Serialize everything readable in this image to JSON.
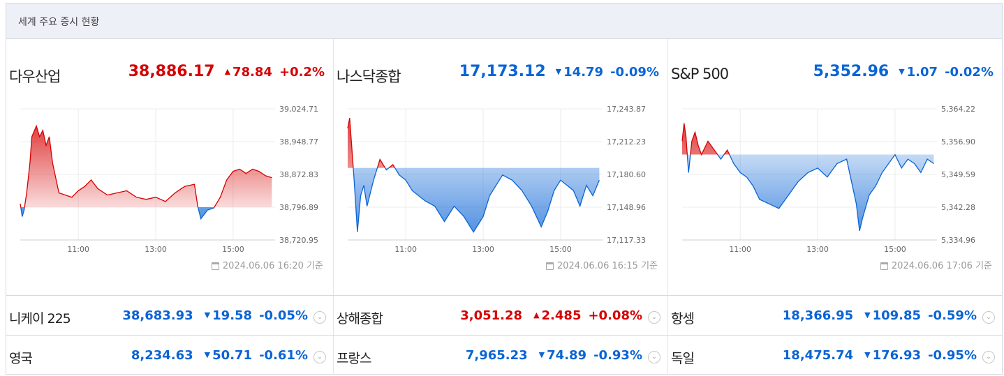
{
  "header": {
    "title": "세계 주요 증시 현황"
  },
  "colors": {
    "up": "#d60000",
    "down": "#0a64d6",
    "up_fill": "#f4a3a3",
    "down_fill": "#a9c8ef"
  },
  "panels": [
    {
      "name": "다우산업",
      "price": "38,886.17",
      "direction": "up",
      "arrow": "▲",
      "change": "78.84",
      "pct": "+0.2%",
      "asof": "2024.06.06 16:20 기준",
      "y_ticks": [
        "39,024.71",
        "38,948.77",
        "38,872.83",
        "38,796.89",
        "38,720.95"
      ],
      "x_ticks": [
        "11:00",
        "13:00",
        "15:00"
      ],
      "chart_data": {
        "type": "area",
        "baseline": 38796.89,
        "ylim": [
          38720.95,
          39024.71
        ],
        "x": [
          "09:30",
          "09:33",
          "09:36",
          "09:40",
          "09:45",
          "09:48",
          "09:55",
          "10:00",
          "10:05",
          "10:10",
          "10:15",
          "10:20",
          "10:30",
          "10:40",
          "10:50",
          "11:00",
          "11:10",
          "11:20",
          "11:30",
          "11:45",
          "12:00",
          "12:15",
          "12:30",
          "12:45",
          "13:00",
          "13:15",
          "13:30",
          "13:45",
          "14:00",
          "14:05",
          "14:10",
          "14:20",
          "14:30",
          "14:40",
          "14:50",
          "15:00",
          "15:10",
          "15:20",
          "15:30",
          "15:40",
          "15:50",
          "16:00"
        ],
        "y": [
          38805,
          38775,
          38790,
          38830,
          38900,
          38960,
          38985,
          38960,
          38975,
          38940,
          38960,
          38900,
          38830,
          38825,
          38820,
          38835,
          38845,
          38860,
          38840,
          38825,
          38830,
          38835,
          38820,
          38815,
          38820,
          38810,
          38830,
          38845,
          38850,
          38800,
          38770,
          38790,
          38795,
          38820,
          38860,
          38880,
          38885,
          38875,
          38885,
          38880,
          38870,
          38865
        ]
      }
    },
    {
      "name": "나스닥종합",
      "price": "17,173.12",
      "direction": "down",
      "arrow": "▼",
      "change": "14.79",
      "pct": "-0.09%",
      "asof": "2024.06.06 16:15 기준",
      "y_ticks": [
        "17,243.87",
        "17,212.23",
        "17,180.60",
        "17,148.96",
        "17,117.33"
      ],
      "x_ticks": [
        "11:00",
        "13:00",
        "15:00"
      ],
      "chart_data": {
        "type": "area",
        "baseline": 17186.8,
        "ylim": [
          17117.33,
          17243.87
        ],
        "x": [
          "09:30",
          "09:33",
          "09:36",
          "09:40",
          "09:45",
          "09:50",
          "09:55",
          "10:00",
          "10:10",
          "10:20",
          "10:30",
          "10:40",
          "10:50",
          "11:00",
          "11:10",
          "11:20",
          "11:30",
          "11:45",
          "12:00",
          "12:15",
          "12:30",
          "12:45",
          "13:00",
          "13:10",
          "13:20",
          "13:30",
          "13:45",
          "14:00",
          "14:15",
          "14:30",
          "14:40",
          "14:50",
          "15:00",
          "15:10",
          "15:20",
          "15:30",
          "15:40",
          "15:50",
          "16:00"
        ],
        "y": [
          17225,
          17235,
          17210,
          17175,
          17125,
          17160,
          17170,
          17150,
          17175,
          17195,
          17185,
          17190,
          17180,
          17175,
          17165,
          17160,
          17155,
          17150,
          17135,
          17150,
          17140,
          17125,
          17140,
          17160,
          17170,
          17180,
          17175,
          17165,
          17150,
          17130,
          17145,
          17165,
          17175,
          17170,
          17165,
          17150,
          17170,
          17160,
          17175
        ]
      }
    },
    {
      "name": "S&P 500",
      "price": "5,352.96",
      "direction": "down",
      "arrow": "▼",
      "change": "1.07",
      "pct": "-0.02%",
      "asof": "2024.06.06 17:06 기준",
      "y_ticks": [
        "5,364.22",
        "5,356.90",
        "5,349.59",
        "5,342.28",
        "5,334.96"
      ],
      "x_ticks": [
        "11:00",
        "13:00",
        "15:00"
      ],
      "chart_data": {
        "type": "area",
        "baseline": 5354.03,
        "ylim": [
          5334.96,
          5364.22
        ],
        "x": [
          "09:30",
          "09:33",
          "09:36",
          "09:40",
          "09:45",
          "09:50",
          "09:55",
          "10:00",
          "10:10",
          "10:20",
          "10:30",
          "10:40",
          "10:50",
          "11:00",
          "11:10",
          "11:20",
          "11:30",
          "11:45",
          "12:00",
          "12:15",
          "12:30",
          "12:45",
          "13:00",
          "13:15",
          "13:30",
          "13:45",
          "14:00",
          "14:05",
          "14:10",
          "14:20",
          "14:30",
          "14:40",
          "14:50",
          "15:00",
          "15:10",
          "15:20",
          "15:30",
          "15:40",
          "15:50",
          "16:00"
        ],
        "y": [
          5357,
          5361,
          5358,
          5350,
          5357,
          5359,
          5356,
          5354,
          5357,
          5355,
          5353,
          5355,
          5352,
          5350,
          5349,
          5347,
          5344,
          5343,
          5342,
          5345,
          5348,
          5350,
          5351,
          5349,
          5352,
          5353,
          5343,
          5337,
          5340,
          5345,
          5347,
          5350,
          5352,
          5354,
          5351,
          5353,
          5352,
          5350,
          5353,
          5352
        ]
      }
    }
  ],
  "rows": [
    [
      {
        "name": "니케이 225",
        "price": "38,683.93",
        "direction": "down",
        "arrow": "▼",
        "change": "19.58",
        "pct": "-0.05%"
      },
      {
        "name": "상해종합",
        "price": "3,051.28",
        "direction": "up",
        "arrow": "▲",
        "change": "2.485",
        "pct": "+0.08%"
      },
      {
        "name": "항셍",
        "price": "18,366.95",
        "direction": "down",
        "arrow": "▼",
        "change": "109.85",
        "pct": "-0.59%"
      }
    ],
    [
      {
        "name": "영국",
        "price": "8,234.63",
        "direction": "down",
        "arrow": "▼",
        "change": "50.71",
        "pct": "-0.61%"
      },
      {
        "name": "프랑스",
        "price": "7,965.23",
        "direction": "down",
        "arrow": "▼",
        "change": "74.89",
        "pct": "-0.93%"
      },
      {
        "name": "독일",
        "price": "18,475.74",
        "direction": "down",
        "arrow": "▼",
        "change": "176.93",
        "pct": "-0.95%"
      }
    ]
  ],
  "icons": {
    "expand": "chevron-down-icon",
    "asof": "calendar-icon"
  }
}
